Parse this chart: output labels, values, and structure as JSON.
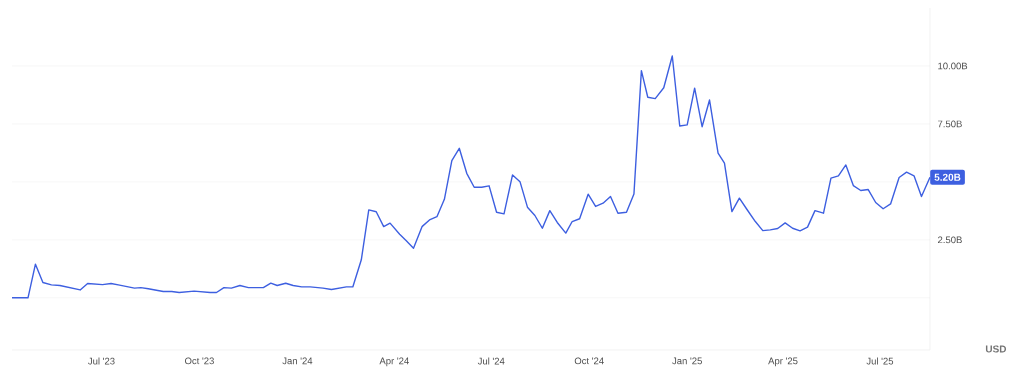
{
  "chart_data": {
    "type": "line",
    "ylabel": "USD",
    "x": [
      "2023-04-08",
      "2023-04-23",
      "2023-04-30",
      "2023-05-07",
      "2023-05-15",
      "2023-05-23",
      "2023-06-11",
      "2023-06-18",
      "2023-07-02",
      "2023-07-10",
      "2023-07-18",
      "2023-08-01",
      "2023-08-07",
      "2023-08-14",
      "2023-08-28",
      "2023-09-05",
      "2023-09-12",
      "2023-09-26",
      "2023-10-11",
      "2023-10-17",
      "2023-10-24",
      "2023-10-31",
      "2023-11-08",
      "2023-11-16",
      "2023-11-30",
      "2023-12-07",
      "2023-12-13",
      "2023-12-21",
      "2023-12-28",
      "2024-01-05",
      "2024-01-13",
      "2024-01-25",
      "2024-02-02",
      "2024-02-16",
      "2024-02-22",
      "2024-03-01",
      "2024-03-08",
      "2024-03-15",
      "2024-03-22",
      "2024-03-28",
      "2024-04-06",
      "2024-04-12",
      "2024-04-19",
      "2024-04-27",
      "2024-05-04",
      "2024-05-11",
      "2024-05-18",
      "2024-05-25",
      "2024-06-01",
      "2024-06-08",
      "2024-06-15",
      "2024-06-22",
      "2024-06-29",
      "2024-07-06",
      "2024-07-13",
      "2024-07-21",
      "2024-07-28",
      "2024-08-04",
      "2024-08-11",
      "2024-08-18",
      "2024-08-25",
      "2024-09-01",
      "2024-09-09",
      "2024-09-15",
      "2024-09-22",
      "2024-09-30",
      "2024-10-07",
      "2024-10-14",
      "2024-10-21",
      "2024-10-28",
      "2024-11-05",
      "2024-11-12",
      "2024-11-19",
      "2024-11-25",
      "2024-12-02",
      "2024-12-10",
      "2024-12-18",
      "2024-12-25",
      "2025-01-01",
      "2025-01-08",
      "2025-01-15",
      "2025-01-22",
      "2025-01-30",
      "2025-02-05",
      "2025-02-12",
      "2025-02-19",
      "2025-02-26",
      "2025-03-06",
      "2025-03-13",
      "2025-03-20",
      "2025-03-27",
      "2025-04-03",
      "2025-04-10",
      "2025-04-17",
      "2025-04-24",
      "2025-05-01",
      "2025-05-09",
      "2025-05-16",
      "2025-05-23",
      "2025-05-30",
      "2025-06-06",
      "2025-06-13",
      "2025-06-20",
      "2025-06-27",
      "2025-07-04",
      "2025-07-11",
      "2025-07-19",
      "2025-07-26",
      "2025-08-02",
      "2025-08-09",
      "2025-08-17"
    ],
    "series": [
      {
        "color": "#3d5fe0",
        "values": [
          0,
          0,
          1.45,
          0.66,
          0.56,
          0.53,
          0.34,
          0.62,
          0.57,
          0.62,
          0.55,
          0.42,
          0.44,
          0.39,
          0.27,
          0.27,
          0.23,
          0.29,
          0.23,
          0.23,
          0.44,
          0.42,
          0.53,
          0.44,
          0.44,
          0.63,
          0.53,
          0.63,
          0.53,
          0.47,
          0.47,
          0.42,
          0.36,
          0.47,
          0.47,
          1.64,
          3.79,
          3.71,
          3.07,
          3.22,
          2.74,
          2.47,
          2.14,
          3.07,
          3.36,
          3.5,
          4.25,
          5.92,
          6.45,
          5.37,
          4.77,
          4.77,
          4.83,
          3.69,
          3.62,
          5.3,
          5.01,
          3.91,
          3.55,
          3.0,
          3.76,
          3.25,
          2.79,
          3.29,
          3.41,
          4.47,
          3.94,
          4.08,
          4.37,
          3.65,
          3.69,
          4.48,
          9.8,
          8.65,
          8.59,
          9.06,
          10.43,
          7.41,
          7.46,
          9.04,
          7.38,
          8.53,
          6.24,
          5.81,
          3.72,
          4.3,
          3.82,
          3.29,
          2.9,
          2.93,
          2.99,
          3.23,
          3.0,
          2.89,
          3.05,
          3.76,
          3.65,
          5.16,
          5.26,
          5.73,
          4.84,
          4.63,
          4.67,
          4.11,
          3.84,
          4.05,
          5.19,
          5.42,
          5.26,
          4.37,
          5.2
        ]
      }
    ],
    "xlim": [
      "2023-04-08",
      "2025-08-17"
    ],
    "ylim": [
      -2.25,
      12.5
    ],
    "xticks": [
      {
        "value": "2023-07-01",
        "label": "Jul '23"
      },
      {
        "value": "2023-10-01",
        "label": "Oct '23"
      },
      {
        "value": "2024-01-01",
        "label": "Jan '24"
      },
      {
        "value": "2024-04-01",
        "label": "Apr '24"
      },
      {
        "value": "2024-07-01",
        "label": "Jul '24"
      },
      {
        "value": "2024-10-01",
        "label": "Oct '24"
      },
      {
        "value": "2025-01-01",
        "label": "Jan '25"
      },
      {
        "value": "2025-04-01",
        "label": "Apr '25"
      },
      {
        "value": "2025-07-01",
        "label": "Jul '25"
      }
    ],
    "yticks": [
      {
        "value": 0,
        "label": null
      },
      {
        "value": 2.5,
        "label": "2.50B"
      },
      {
        "value": 5,
        "label": null
      },
      {
        "value": 7.5,
        "label": "7.50B"
      },
      {
        "value": 10,
        "label": "10.00B"
      }
    ],
    "grid": "y",
    "annotations": [
      {
        "text": "5.20B",
        "x": "2025-08-17",
        "y": 5.2
      }
    ]
  }
}
